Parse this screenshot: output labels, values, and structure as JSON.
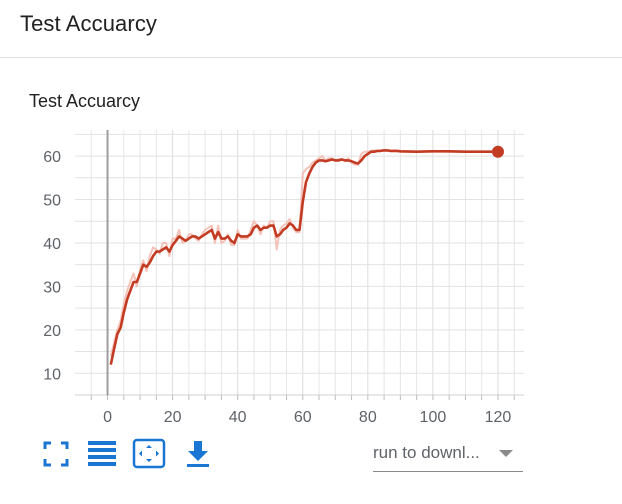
{
  "header": {
    "title": "Test Accuarcy"
  },
  "card": {
    "title": "Test Accuarcy"
  },
  "toolbar": {
    "buttons": [
      "fullscreen-icon",
      "data-table-icon",
      "fit-domain-icon",
      "download-icon"
    ],
    "accent_color": "#1976d2",
    "dropdown_label": "run to downl..."
  },
  "chart_data": {
    "type": "line",
    "title": "",
    "xlabel": "",
    "ylabel": "",
    "xlim": [
      -10,
      128
    ],
    "ylim": [
      5,
      66
    ],
    "x_ticks": [
      0,
      20,
      40,
      60,
      80,
      100,
      120
    ],
    "y_ticks": [
      10,
      20,
      30,
      40,
      50,
      60
    ],
    "grid": true,
    "smoothed_color": "#c23b22",
    "raw_color": "#f2b8ad",
    "series": [
      {
        "x": [
          1,
          2,
          3,
          4,
          5,
          6,
          7,
          8,
          9,
          10,
          11,
          12,
          13,
          14,
          15,
          16,
          17,
          18,
          19,
          20,
          21,
          22,
          23,
          24,
          25,
          26,
          27,
          28,
          29,
          30,
          31,
          32,
          33,
          34,
          35,
          36,
          37,
          38,
          39,
          40,
          41,
          42,
          43,
          44,
          45,
          46,
          47,
          48,
          49,
          50,
          51,
          52,
          53,
          54,
          55,
          56,
          57,
          58,
          59,
          60,
          61,
          62,
          63,
          64,
          65,
          66,
          67,
          68,
          69,
          70,
          71,
          72,
          73,
          74,
          75,
          76,
          77,
          78,
          79,
          80,
          81,
          82,
          83,
          84,
          85,
          86,
          87,
          88,
          89,
          90,
          95,
          100,
          105,
          110,
          115,
          120
        ],
        "smoothed": [
          12,
          15.5,
          19,
          20.5,
          24,
          27,
          29,
          31,
          31,
          33,
          35,
          34.5,
          35.5,
          37,
          38,
          38,
          38.5,
          39,
          38,
          39.5,
          40.5,
          41.5,
          41,
          40.5,
          41,
          41.5,
          41.5,
          41,
          41.5,
          42,
          42.5,
          43,
          41,
          42.5,
          41,
          41,
          41.5,
          40.5,
          40,
          42,
          41.5,
          41.5,
          41.5,
          42,
          43.5,
          44,
          43,
          43.5,
          43.5,
          44,
          44,
          41.5,
          42,
          43,
          43.5,
          44.5,
          44,
          43,
          43,
          49.5,
          54,
          56,
          57.5,
          58.5,
          59,
          59,
          58.8,
          59,
          59.2,
          59,
          59,
          59.2,
          59,
          59,
          58.8,
          58.5,
          58.3,
          59,
          60,
          60.5,
          61,
          61,
          61.2,
          61.2,
          61.3,
          61.3,
          61.2,
          61.2,
          61.2,
          61.1,
          61,
          61.1,
          61.1,
          61,
          61,
          61
        ],
        "raw": [
          14,
          17,
          20,
          22,
          26,
          29,
          31,
          33,
          30,
          34,
          36,
          33.5,
          37,
          39,
          38.5,
          37.5,
          40,
          40,
          37,
          41,
          41,
          43,
          40,
          40.5,
          42,
          42,
          41,
          40.5,
          42,
          43,
          43.5,
          44,
          40,
          44,
          40,
          40.5,
          42,
          39.5,
          39.5,
          43,
          41,
          41,
          41,
          43,
          45,
          44,
          42,
          44,
          43.5,
          45,
          45,
          38.5,
          43,
          44,
          44.5,
          45.5,
          43.5,
          42.5,
          42.5,
          56,
          57,
          57.5,
          58.5,
          59,
          59.5,
          60,
          59,
          59.5,
          59.5,
          59,
          59.3,
          59.3,
          58.8,
          59.5,
          58.5,
          58,
          58,
          60.5,
          61,
          61,
          61.2,
          61.3,
          61.2,
          61.3,
          61.4,
          61.2,
          61.1,
          61.3,
          61.2,
          61,
          61,
          61.2,
          61,
          61,
          61,
          61
        ]
      }
    ]
  }
}
